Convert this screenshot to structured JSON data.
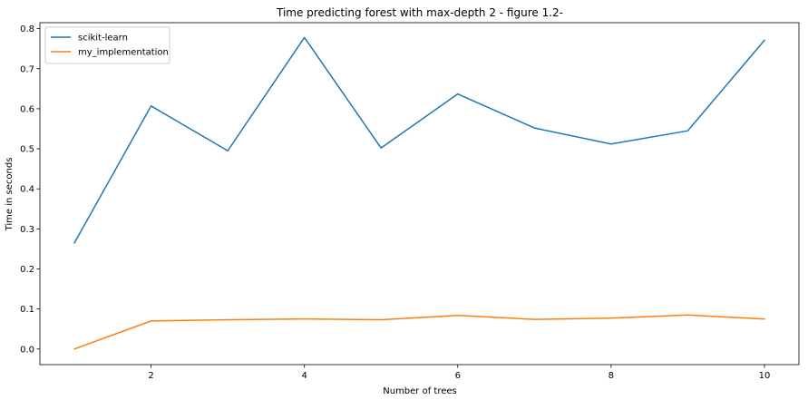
{
  "chart_data": {
    "type": "line",
    "title": "Time predicting forest with max-depth 2 - figure 1.2-",
    "xlabel": "Number of trees",
    "ylabel": "Time in seconds",
    "x": [
      1,
      2,
      3,
      4,
      5,
      6,
      7,
      8,
      9,
      10
    ],
    "xlim": [
      0.55,
      10.45
    ],
    "ylim": [
      -0.039,
      0.815
    ],
    "xticks": [
      2,
      4,
      6,
      8,
      10
    ],
    "yticks": [
      0.0,
      0.1,
      0.2,
      0.3,
      0.4,
      0.5,
      0.6,
      0.7,
      0.8
    ],
    "grid": false,
    "legend_position": "top-left",
    "series": [
      {
        "name": "scikit-learn",
        "color": "#1f77b4",
        "values": [
          0.265,
          0.607,
          0.495,
          0.778,
          0.502,
          0.637,
          0.552,
          0.512,
          0.545,
          0.771
        ]
      },
      {
        "name": "my_implementation",
        "color": "#ff7f0e",
        "values": [
          0.0,
          0.07,
          0.073,
          0.075,
          0.073,
          0.084,
          0.074,
          0.077,
          0.085,
          0.075
        ]
      }
    ]
  }
}
